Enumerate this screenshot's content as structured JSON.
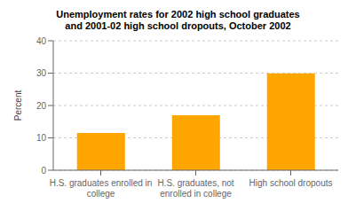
{
  "chart_data": {
    "type": "bar",
    "title": "Unemployment rates for 2002 high school graduates\nand 2001-02 high school dropouts, October 2002",
    "categories": [
      "H.S. graduates enrolled in\ncollege",
      "H.S. graduates, not\nenrolled in college",
      "High school dropouts"
    ],
    "values": [
      11.5,
      17.0,
      29.9
    ],
    "color": "#FFA500",
    "ylabel": "Percent",
    "ylim": [
      0,
      40
    ],
    "yticks": [
      0,
      10,
      20,
      30,
      40
    ],
    "grid": true
  }
}
